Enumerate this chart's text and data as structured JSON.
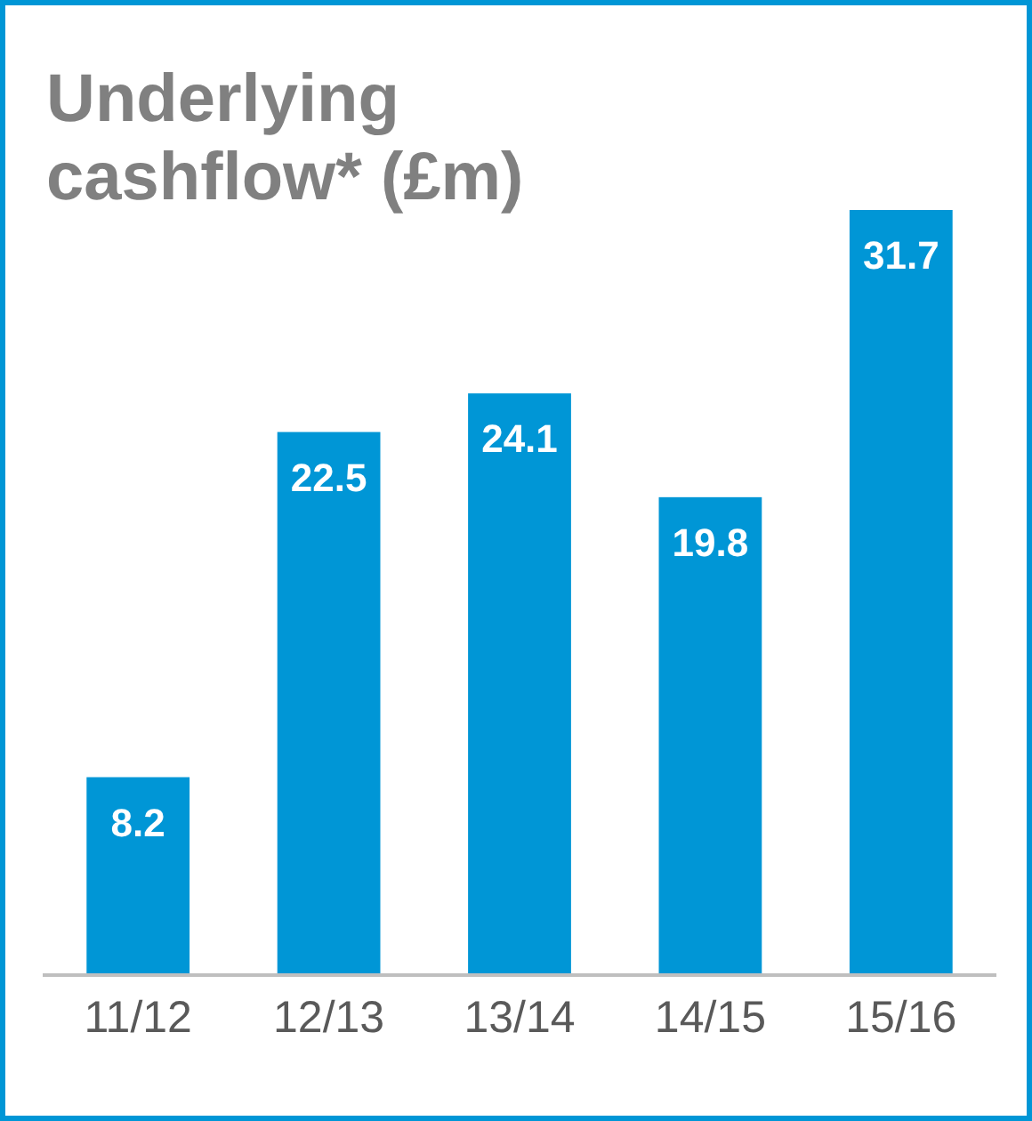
{
  "chart_data": {
    "type": "bar",
    "title": "Underlying cashflow* (£m)",
    "categories": [
      "11/12",
      "12/13",
      "13/14",
      "14/15",
      "15/16"
    ],
    "values": [
      8.2,
      22.5,
      24.1,
      19.8,
      31.7
    ],
    "color": "#0096d6",
    "data_labels": true
  }
}
